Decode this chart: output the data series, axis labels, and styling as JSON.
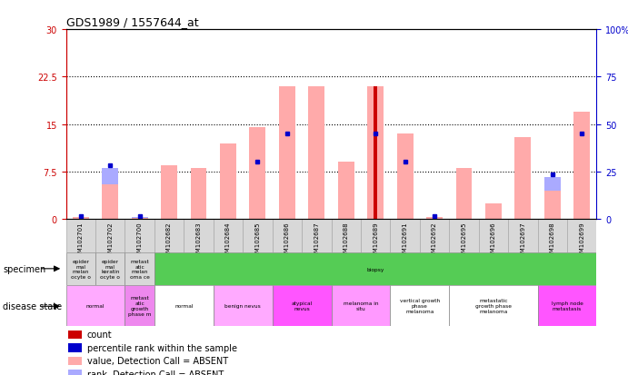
{
  "title": "GDS1989 / 1557644_at",
  "samples": [
    "GSM102701",
    "GSM102702",
    "GSM102700",
    "GSM102682",
    "GSM102683",
    "GSM102684",
    "GSM102685",
    "GSM102686",
    "GSM102687",
    "GSM102688",
    "GSM102689",
    "GSM102691",
    "GSM102692",
    "GSM102695",
    "GSM102696",
    "GSM102697",
    "GSM102698",
    "GSM102699"
  ],
  "pink_bars": [
    0.3,
    5.5,
    0.2,
    8.5,
    8.0,
    12.0,
    14.5,
    21.0,
    21.0,
    9.0,
    21.0,
    13.5,
    0.3,
    8.0,
    2.5,
    13.0,
    4.5,
    17.0
  ],
  "red_bars": [
    0.0,
    0.0,
    0.0,
    0.0,
    0.0,
    0.0,
    0.0,
    0.0,
    0.0,
    0.0,
    21.0,
    0.0,
    0.0,
    0.0,
    0.0,
    0.0,
    0.0,
    0.0
  ],
  "blue_squares": [
    0.5,
    8.5,
    0.5,
    null,
    null,
    null,
    9.0,
    13.5,
    null,
    null,
    13.5,
    9.0,
    0.5,
    null,
    null,
    null,
    7.0,
    13.5
  ],
  "rank_bars": [
    1,
    27,
    1,
    null,
    null,
    null,
    27,
    43,
    null,
    null,
    43,
    27,
    1,
    null,
    null,
    null,
    22,
    43
  ],
  "ylim_left": [
    0,
    30
  ],
  "ylim_right": [
    0,
    100
  ],
  "yticks_left": [
    0,
    7.5,
    15.0,
    22.5,
    30
  ],
  "ytick_labels_left": [
    "0",
    "7.5",
    "15",
    "22.5",
    "30"
  ],
  "yticks_right": [
    0,
    25,
    50,
    75,
    100
  ],
  "ytick_labels_right": [
    "0",
    "25",
    "50",
    "75",
    "100%"
  ],
  "hlines": [
    7.5,
    15.0,
    22.5
  ],
  "specimen_groups": [
    {
      "label": "epider\nmal\nmelan\nocyte o",
      "cols": [
        0
      ],
      "color": "#d8d8d8"
    },
    {
      "label": "epider\nmal\nkeratin\nocyte o",
      "cols": [
        1
      ],
      "color": "#d8d8d8"
    },
    {
      "label": "metast\natic\nmelan\noma ce",
      "cols": [
        2
      ],
      "color": "#d8d8d8"
    },
    {
      "label": "biopsy",
      "cols": [
        3,
        4,
        5,
        6,
        7,
        8,
        9,
        10,
        11,
        12,
        13,
        14,
        15,
        16,
        17
      ],
      "color": "#55cc55"
    }
  ],
  "disease_groups": [
    {
      "label": "normal",
      "cols": [
        0,
        1
      ],
      "color": "#ffaaff"
    },
    {
      "label": "metast\natic\ngrowth\nphase m",
      "cols": [
        2
      ],
      "color": "#ee88ee"
    },
    {
      "label": "normal",
      "cols": [
        3,
        4
      ],
      "color": "#ffffff"
    },
    {
      "label": "benign nevus",
      "cols": [
        5,
        6
      ],
      "color": "#ffaaff"
    },
    {
      "label": "atypical\nnevus",
      "cols": [
        7,
        8
      ],
      "color": "#ff55ff"
    },
    {
      "label": "melanoma in\nsitu",
      "cols": [
        9,
        10
      ],
      "color": "#ff99ff"
    },
    {
      "label": "vertical growth\nphase\nmelanoma",
      "cols": [
        11,
        12
      ],
      "color": "#ffffff"
    },
    {
      "label": "metastatic\ngrowth phase\nmelanoma",
      "cols": [
        13,
        14,
        15
      ],
      "color": "#ffffff"
    },
    {
      "label": "lymph node\nmetastasis",
      "cols": [
        16,
        17
      ],
      "color": "#ff55ff"
    }
  ],
  "colors": {
    "pink": "#ffaaaa",
    "red": "#cc0000",
    "blue": "#0000cc",
    "lavender": "#aaaaff",
    "axis_left_color": "#cc0000",
    "axis_right_color": "#0000cc"
  },
  "legend_items": [
    {
      "color": "#cc0000",
      "label": "count"
    },
    {
      "color": "#0000cc",
      "label": "percentile rank within the sample"
    },
    {
      "color": "#ffaaaa",
      "label": "value, Detection Call = ABSENT"
    },
    {
      "color": "#aaaaff",
      "label": "rank, Detection Call = ABSENT"
    }
  ]
}
